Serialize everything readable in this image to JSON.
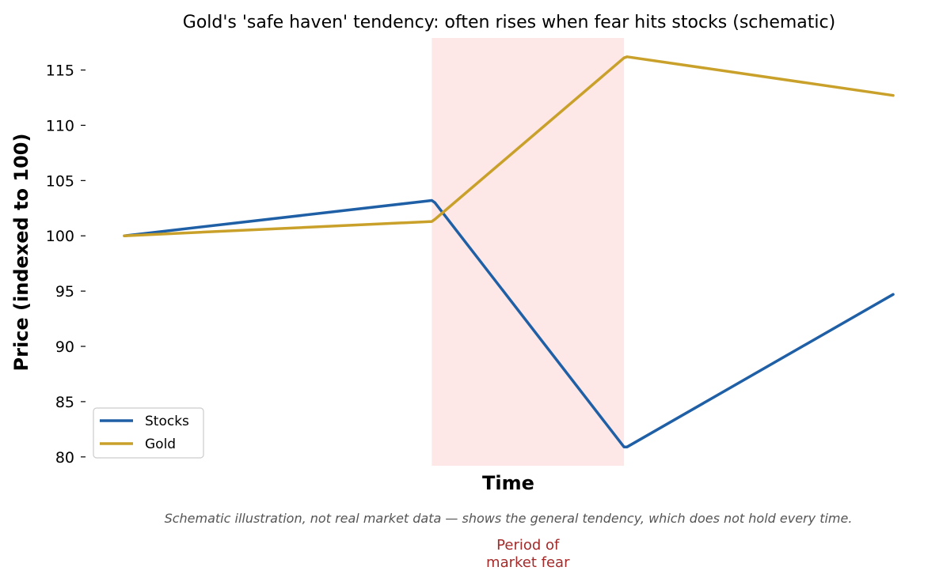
{
  "chart_data": {
    "type": "line",
    "title": "Gold's 'safe haven' tendency: often rises when fear hits stocks (schematic)",
    "xlabel": "Time",
    "ylabel": "Price (indexed to 100)",
    "xlim": [
      0,
      100
    ],
    "ylim": [
      79.2,
      117.9
    ],
    "yticks": [
      80,
      85,
      90,
      95,
      100,
      105,
      110,
      115
    ],
    "grid": false,
    "legend_position": "lower-left",
    "series": [
      {
        "name": "Stocks",
        "color": "#1f5fa6",
        "x": [
          0,
          40,
          40.4,
          65,
          65.4,
          100
        ],
        "values": [
          100,
          103.2,
          103,
          80.9,
          80.9,
          94.7
        ]
      },
      {
        "name": "Gold",
        "color": "#c9a12a",
        "x": [
          0,
          40,
          40.4,
          65,
          65.4,
          100
        ],
        "values": [
          100,
          101.3,
          101.5,
          116.1,
          116.2,
          112.7
        ]
      }
    ],
    "shaded_region": {
      "x_start": 40,
      "x_end": 65,
      "color": "#fde7e7",
      "label": "Period of\nmarket fear",
      "label_color": "#a52a2a"
    },
    "caption": "Schematic illustration, not real market data — shows the general tendency, which does not hold every time."
  }
}
